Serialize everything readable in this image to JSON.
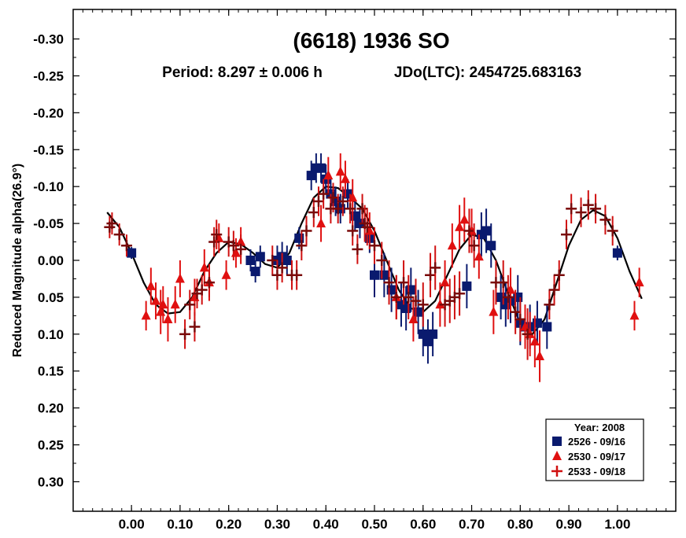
{
  "chart_data": {
    "type": "scatter",
    "title": "(6618) 1936 SO",
    "subtitle_period": "Period: 8.297 ± 0.006 h",
    "subtitle_jd": "JDo(LTC): 2454725.683163",
    "xlabel": "",
    "ylabel": "Reduced Magnitude alpha(26.9°)",
    "xlim": [
      -0.12,
      1.12
    ],
    "ylim": [
      -0.34,
      0.34
    ],
    "y_inverted": true,
    "grid": false,
    "x_ticks": [
      0.0,
      0.1,
      0.2,
      0.3,
      0.4,
      0.5,
      0.6,
      0.7,
      0.8,
      0.9,
      1.0
    ],
    "x_tick_labels": [
      "0.00",
      "0.10",
      "0.20",
      "0.30",
      "0.40",
      "0.50",
      "0.60",
      "0.70",
      "0.80",
      "0.90",
      "1.00"
    ],
    "y_ticks": [
      -0.3,
      -0.25,
      -0.2,
      -0.15,
      -0.1,
      -0.05,
      0.0,
      0.05,
      0.1,
      0.15,
      0.2,
      0.25,
      0.3
    ],
    "y_tick_labels": [
      "-0.30",
      "-0.25",
      "-0.20",
      "-0.15",
      "-0.10",
      "-0.05",
      "0.00",
      "0.05",
      "0.10",
      "0.15",
      "0.20",
      "0.25",
      "0.30"
    ],
    "legend": {
      "title": "Year: 2008",
      "placement": "bottom-right",
      "entries": [
        "2526 - 09/16",
        "2530 - 09/17",
        "2533 - 09/18"
      ]
    },
    "series": [
      {
        "name": "2526 - 09/16",
        "marker": "square",
        "color": "#0a1a6e",
        "error_color": "#0a1a6e",
        "x": [
          0.0,
          0.245,
          0.255,
          0.265,
          0.3,
          0.31,
          0.32,
          0.345,
          0.37,
          0.38,
          0.39,
          0.4,
          0.41,
          0.42,
          0.43,
          0.445,
          0.46,
          0.47,
          0.49,
          0.5,
          0.52,
          0.535,
          0.555,
          0.565,
          0.575,
          0.59,
          0.6,
          0.61,
          0.62,
          0.69,
          0.72,
          0.73,
          0.74,
          0.76,
          0.77,
          0.78,
          0.795,
          0.8,
          0.81,
          0.82,
          0.835,
          0.855,
          1.0
        ],
        "y": [
          -0.01,
          0.0,
          0.015,
          -0.005,
          0.0,
          -0.005,
          0.0,
          -0.03,
          -0.115,
          -0.125,
          -0.125,
          -0.11,
          -0.09,
          -0.08,
          -0.07,
          -0.09,
          -0.06,
          -0.05,
          -0.03,
          0.02,
          0.02,
          0.04,
          0.06,
          0.065,
          0.04,
          0.07,
          0.1,
          0.11,
          0.1,
          0.035,
          -0.035,
          -0.04,
          -0.02,
          0.05,
          0.06,
          0.055,
          0.05,
          0.085,
          0.09,
          0.09,
          0.085,
          0.09,
          -0.01
        ],
        "err": [
          0.008,
          0.015,
          0.015,
          0.015,
          0.02,
          0.02,
          0.02,
          0.015,
          0.02,
          0.02,
          0.02,
          0.02,
          0.02,
          0.02,
          0.02,
          0.02,
          0.02,
          0.02,
          0.02,
          0.03,
          0.03,
          0.03,
          0.03,
          0.03,
          0.03,
          0.03,
          0.03,
          0.03,
          0.03,
          0.03,
          0.03,
          0.03,
          0.03,
          0.03,
          0.03,
          0.03,
          0.03,
          0.03,
          0.03,
          0.03,
          0.03,
          0.03,
          0.01
        ]
      },
      {
        "name": "2530 - 09/17",
        "marker": "triangle",
        "color": "#e01010",
        "error_color": "#e01010",
        "x": [
          0.03,
          0.04,
          0.05,
          0.06,
          0.065,
          0.075,
          0.09,
          0.1,
          0.13,
          0.15,
          0.16,
          0.18,
          0.195,
          0.215,
          0.225,
          0.39,
          0.405,
          0.43,
          0.44,
          0.455,
          0.49,
          0.545,
          0.58,
          0.635,
          0.645,
          0.66,
          0.675,
          0.685,
          0.7,
          0.715,
          0.745,
          0.78,
          0.81,
          0.82,
          0.83,
          0.84,
          1.035,
          1.045
        ],
        "y": [
          0.075,
          0.035,
          0.055,
          0.07,
          0.06,
          0.08,
          0.06,
          0.025,
          0.05,
          0.01,
          0.03,
          -0.03,
          0.02,
          -0.01,
          -0.025,
          -0.05,
          -0.115,
          -0.12,
          -0.11,
          -0.085,
          -0.04,
          0.05,
          0.08,
          0.06,
          0.03,
          -0.02,
          -0.045,
          -0.055,
          -0.04,
          -0.005,
          0.07,
          0.04,
          0.09,
          0.1,
          0.11,
          0.13,
          0.075,
          0.03
        ],
        "err": [
          0.02,
          0.025,
          0.025,
          0.03,
          0.025,
          0.03,
          0.025,
          0.025,
          0.025,
          0.025,
          0.025,
          0.02,
          0.02,
          0.02,
          0.02,
          0.025,
          0.025,
          0.025,
          0.025,
          0.025,
          0.025,
          0.03,
          0.03,
          0.03,
          0.03,
          0.03,
          0.03,
          0.03,
          0.03,
          0.03,
          0.03,
          0.03,
          0.03,
          0.03,
          0.035,
          0.035,
          0.02,
          0.02
        ]
      },
      {
        "name": "2533 - 09/18",
        "marker": "plus",
        "color": "#7a0a0a",
        "error_color": "#d01010",
        "x": [
          -0.045,
          -0.04,
          -0.025,
          -0.01,
          0.11,
          0.12,
          0.13,
          0.135,
          0.145,
          0.16,
          0.17,
          0.175,
          0.2,
          0.21,
          0.225,
          0.29,
          0.3,
          0.31,
          0.33,
          0.34,
          0.35,
          0.36,
          0.375,
          0.385,
          0.395,
          0.41,
          0.415,
          0.425,
          0.435,
          0.45,
          0.455,
          0.465,
          0.475,
          0.48,
          0.485,
          0.5,
          0.515,
          0.53,
          0.545,
          0.56,
          0.57,
          0.585,
          0.6,
          0.615,
          0.625,
          0.645,
          0.655,
          0.665,
          0.675,
          0.695,
          0.705,
          0.75,
          0.765,
          0.775,
          0.79,
          0.8,
          0.815,
          0.86,
          0.87,
          0.88,
          0.895,
          0.905,
          0.925,
          0.94,
          0.955,
          0.975,
          0.99
        ],
        "y": [
          -0.045,
          -0.05,
          -0.035,
          -0.02,
          0.1,
          0.06,
          0.09,
          0.045,
          0.04,
          0.03,
          -0.025,
          -0.035,
          -0.025,
          -0.02,
          -0.015,
          0.0,
          0.02,
          0.01,
          0.02,
          0.02,
          -0.02,
          -0.04,
          -0.065,
          -0.08,
          -0.09,
          -0.07,
          -0.085,
          -0.07,
          -0.08,
          -0.07,
          -0.04,
          -0.015,
          -0.07,
          -0.05,
          -0.045,
          -0.02,
          0.0,
          0.03,
          0.05,
          0.03,
          0.05,
          0.055,
          0.06,
          0.02,
          0.01,
          0.06,
          0.055,
          0.05,
          0.045,
          -0.04,
          -0.02,
          0.03,
          0.03,
          0.05,
          0.07,
          0.08,
          0.1,
          0.06,
          0.04,
          0.02,
          -0.035,
          -0.07,
          -0.065,
          -0.075,
          -0.07,
          -0.055,
          -0.04
        ],
        "err": [
          0.015,
          0.015,
          0.015,
          0.015,
          0.02,
          0.02,
          0.02,
          0.02,
          0.02,
          0.02,
          0.02,
          0.02,
          0.02,
          0.02,
          0.02,
          0.02,
          0.02,
          0.02,
          0.02,
          0.02,
          0.02,
          0.02,
          0.02,
          0.02,
          0.02,
          0.02,
          0.02,
          0.02,
          0.02,
          0.02,
          0.02,
          0.02,
          0.02,
          0.025,
          0.025,
          0.025,
          0.025,
          0.03,
          0.03,
          0.03,
          0.03,
          0.03,
          0.03,
          0.03,
          0.03,
          0.03,
          0.03,
          0.03,
          0.03,
          0.03,
          0.03,
          0.03,
          0.03,
          0.03,
          0.03,
          0.03,
          0.035,
          0.02,
          0.02,
          0.02,
          0.02,
          0.02,
          0.02,
          0.02,
          0.02,
          0.02,
          0.02
        ]
      }
    ],
    "fit_curve": {
      "name": "fourier-fit",
      "color": "#000000",
      "x": [
        -0.05,
        -0.025,
        0.0,
        0.025,
        0.05,
        0.075,
        0.1,
        0.125,
        0.15,
        0.175,
        0.2,
        0.225,
        0.25,
        0.275,
        0.3,
        0.325,
        0.35,
        0.375,
        0.4,
        0.425,
        0.45,
        0.475,
        0.5,
        0.525,
        0.55,
        0.575,
        0.6,
        0.625,
        0.65,
        0.675,
        0.7,
        0.725,
        0.75,
        0.775,
        0.8,
        0.825,
        0.85,
        0.875,
        0.9,
        0.925,
        0.95,
        0.975,
        1.0,
        1.025,
        1.05
      ],
      "y": [
        -0.065,
        -0.045,
        -0.01,
        0.03,
        0.06,
        0.072,
        0.07,
        0.05,
        0.015,
        -0.01,
        -0.025,
        -0.022,
        -0.01,
        0.005,
        0.01,
        -0.01,
        -0.05,
        -0.085,
        -0.1,
        -0.098,
        -0.085,
        -0.07,
        -0.04,
        0.0,
        0.04,
        0.065,
        0.07,
        0.055,
        0.02,
        -0.015,
        -0.035,
        -0.03,
        0.0,
        0.045,
        0.085,
        0.1,
        0.08,
        0.03,
        -0.02,
        -0.055,
        -0.068,
        -0.06,
        -0.03,
        0.015,
        0.052
      ]
    }
  }
}
